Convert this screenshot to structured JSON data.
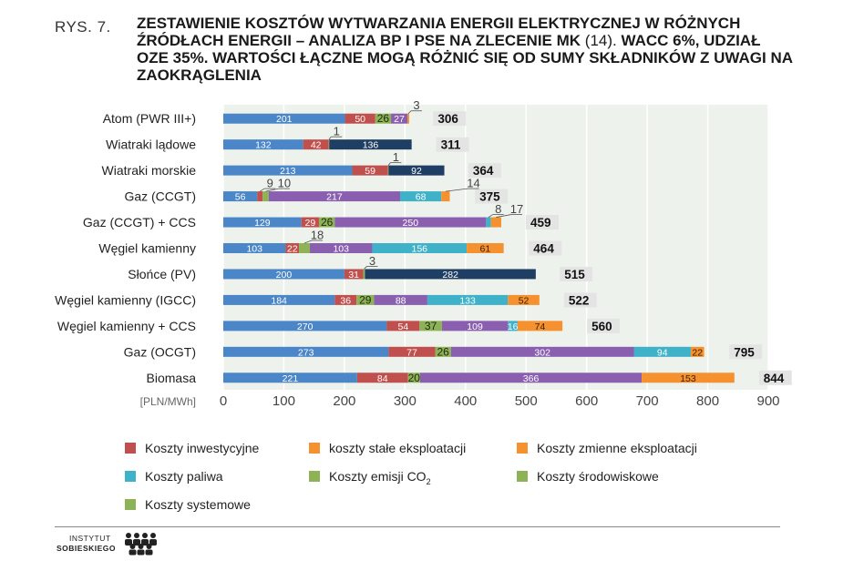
{
  "figure": {
    "label": "RYS. 7.",
    "title_part1": "ZESTAWIENIE KOSZTÓW WYTWARZANIA ENERGII ELEKTRYCZNEJ W RÓŻNYCH ŹRÓDŁACH ENERGII – ANALIZA BP I PSE NA ZLECENIE MK",
    "title_normal": " (14). ",
    "title_part2": "WACC 6%, UDZIAŁ OZE 35%. WARTOŚCI ŁĄCZNE MOGĄ RÓŻNIĆ SIĘ OD SUMY SKŁADNIKÓW Z UWAGI NA ZAOKRĄGLENIA"
  },
  "chart_data": {
    "type": "bar",
    "orientation": "horizontal",
    "stacked": true,
    "unit_label": "[PLN/MWh]",
    "xlim": [
      0,
      900
    ],
    "xticks": [
      "0",
      "100",
      "200",
      "300",
      "400",
      "500",
      "600",
      "700",
      "800",
      "900"
    ],
    "grid": true,
    "legend_position": "bottom",
    "categories": [
      "Atom (PWR III+)",
      "Wiatraki lądowe",
      "Wiatraki morskie",
      "Gaz (CCGT)",
      "Gaz (CCGT) + CCS",
      "Węgiel kamienny",
      "Słońce (PV)",
      "Węgiel kamienny (IGCC)",
      "Węgiel kamienny + CCS",
      "Gaz (OCGT)",
      "Biomasa"
    ],
    "rows": [
      {
        "total": "306",
        "segments": [
          {
            "series": 0,
            "value": 201,
            "label": "201",
            "lp": "in"
          },
          {
            "series": 1,
            "value": 50,
            "label": "50",
            "lp": "in"
          },
          {
            "series": 2,
            "value": 26,
            "label": "26",
            "lp": "in"
          },
          {
            "series": 3,
            "value": 27,
            "label": "27",
            "lp": "in"
          },
          {
            "series": 4,
            "value": 3,
            "label": "3",
            "lp": "above"
          }
        ]
      },
      {
        "total": "311",
        "segments": [
          {
            "series": 0,
            "value": 132,
            "label": "132",
            "lp": "in"
          },
          {
            "series": 1,
            "value": 42,
            "label": "42",
            "lp": "in"
          },
          {
            "series": 2,
            "value": 1,
            "label": "1",
            "lp": "above"
          },
          {
            "series": 5,
            "value": 136,
            "label": "136",
            "lp": "in"
          }
        ]
      },
      {
        "total": "364",
        "segments": [
          {
            "series": 0,
            "value": 213,
            "label": "213",
            "lp": "in"
          },
          {
            "series": 1,
            "value": 59,
            "label": "59",
            "lp": "in"
          },
          {
            "series": 2,
            "value": 1,
            "label": "1",
            "lp": "above"
          },
          {
            "series": 5,
            "value": 92,
            "label": "92",
            "lp": "in"
          }
        ]
      },
      {
        "total": "375",
        "segments": [
          {
            "series": 0,
            "value": 56,
            "label": "56",
            "lp": "in"
          },
          {
            "series": 1,
            "value": 9,
            "label": "9",
            "lp": "above"
          },
          {
            "series": 2,
            "value": 10,
            "label": "10",
            "lp": "above"
          },
          {
            "series": 3,
            "value": 217,
            "label": "217",
            "lp": "in"
          },
          {
            "series": 6,
            "value": 68,
            "label": "68",
            "lp": "in"
          },
          {
            "series": 4,
            "value": 14,
            "label": "14",
            "lp": "above"
          }
        ]
      },
      {
        "total": "459",
        "segments": [
          {
            "series": 0,
            "value": 129,
            "label": "129",
            "lp": "in"
          },
          {
            "series": 1,
            "value": 29,
            "label": "29",
            "lp": "in"
          },
          {
            "series": 2,
            "value": 26,
            "label": "26",
            "lp": "in"
          },
          {
            "series": 3,
            "value": 250,
            "label": "250",
            "lp": "in"
          },
          {
            "series": 6,
            "value": 8,
            "label": "8",
            "lp": "above"
          },
          {
            "series": 4,
            "value": 17,
            "label": "17",
            "lp": "above"
          }
        ]
      },
      {
        "total": "464",
        "segments": [
          {
            "series": 0,
            "value": 103,
            "label": "103",
            "lp": "in"
          },
          {
            "series": 1,
            "value": 22,
            "label": "22",
            "lp": "in"
          },
          {
            "series": 2,
            "value": 18,
            "label": "18",
            "lp": "above"
          },
          {
            "series": 3,
            "value": 103,
            "label": "103",
            "lp": "in"
          },
          {
            "series": 6,
            "value": 156,
            "label": "156",
            "lp": "in"
          },
          {
            "series": 4,
            "value": 61,
            "label": "61",
            "lp": "in"
          }
        ]
      },
      {
        "total": "515",
        "segments": [
          {
            "series": 0,
            "value": 200,
            "label": "200",
            "lp": "in"
          },
          {
            "series": 1,
            "value": 31,
            "label": "31",
            "lp": "in"
          },
          {
            "series": 2,
            "value": 3,
            "label": "3",
            "lp": "above"
          },
          {
            "series": 5,
            "value": 282,
            "label": "282",
            "lp": "in"
          }
        ]
      },
      {
        "total": "522",
        "segments": [
          {
            "series": 0,
            "value": 184,
            "label": "184",
            "lp": "in"
          },
          {
            "series": 1,
            "value": 36,
            "label": "36",
            "lp": "in"
          },
          {
            "series": 2,
            "value": 29,
            "label": "29",
            "lp": "in"
          },
          {
            "series": 3,
            "value": 88,
            "label": "88",
            "lp": "in"
          },
          {
            "series": 6,
            "value": 133,
            "label": "133",
            "lp": "in"
          },
          {
            "series": 4,
            "value": 52,
            "label": "52",
            "lp": "in"
          }
        ]
      },
      {
        "total": "560",
        "segments": [
          {
            "series": 0,
            "value": 270,
            "label": "270",
            "lp": "in"
          },
          {
            "series": 1,
            "value": 54,
            "label": "54",
            "lp": "in"
          },
          {
            "series": 2,
            "value": 37,
            "label": "37",
            "lp": "in"
          },
          {
            "series": 3,
            "value": 109,
            "label": "109",
            "lp": "in"
          },
          {
            "series": 6,
            "value": 16,
            "label": "16",
            "lp": "in"
          },
          {
            "series": 4,
            "value": 74,
            "label": "74",
            "lp": "in"
          }
        ]
      },
      {
        "total": "795",
        "segments": [
          {
            "series": 0,
            "value": 273,
            "label": "273",
            "lp": "in"
          },
          {
            "series": 1,
            "value": 77,
            "label": "77",
            "lp": "in"
          },
          {
            "series": 2,
            "value": 26,
            "label": "26",
            "lp": "in"
          },
          {
            "series": 3,
            "value": 302,
            "label": "302",
            "lp": "in"
          },
          {
            "series": 6,
            "value": 94,
            "label": "94",
            "lp": "in"
          },
          {
            "series": 4,
            "value": 22,
            "label": "22",
            "lp": "in"
          }
        ]
      },
      {
        "total": "844",
        "segments": [
          {
            "series": 0,
            "value": 221,
            "label": "221",
            "lp": "in"
          },
          {
            "series": 1,
            "value": 84,
            "label": "84",
            "lp": "in"
          },
          {
            "series": 2,
            "value": 20,
            "label": "20",
            "lp": "in"
          },
          {
            "series": 3,
            "value": 366,
            "label": "366",
            "lp": "in"
          },
          {
            "series": 4,
            "value": 153,
            "label": "153",
            "lp": "in"
          }
        ]
      }
    ],
    "series_colors": [
      "#4a86c8",
      "#c0504d",
      "#8db356",
      "#8a5fb0",
      "#f5922f",
      "#1f3e63",
      "#3fb1c9"
    ]
  },
  "legend": {
    "items": [
      {
        "label": "Koszty inwestycyjne",
        "sub": "",
        "color": "#c0504d"
      },
      {
        "label": "koszty stałe eksploatacji",
        "sub": "",
        "color": "#f5922f"
      },
      {
        "label": "Koszty zmienne eksploatacji",
        "sub": "",
        "color": "#f5922f"
      },
      {
        "label": "Koszty paliwa",
        "sub": "",
        "color": "#3fb1c9"
      },
      {
        "label": "Koszty emisji CO",
        "sub": "2",
        "color": "#8db356"
      },
      {
        "label": "Koszty środowiskowe",
        "sub": "",
        "color": "#8db356"
      },
      {
        "label": "Koszty systemowe",
        "sub": "",
        "color": "#8db356"
      }
    ]
  },
  "logo": {
    "line1": "INSTYTUT",
    "line2": "SOBIESKIEGO"
  }
}
